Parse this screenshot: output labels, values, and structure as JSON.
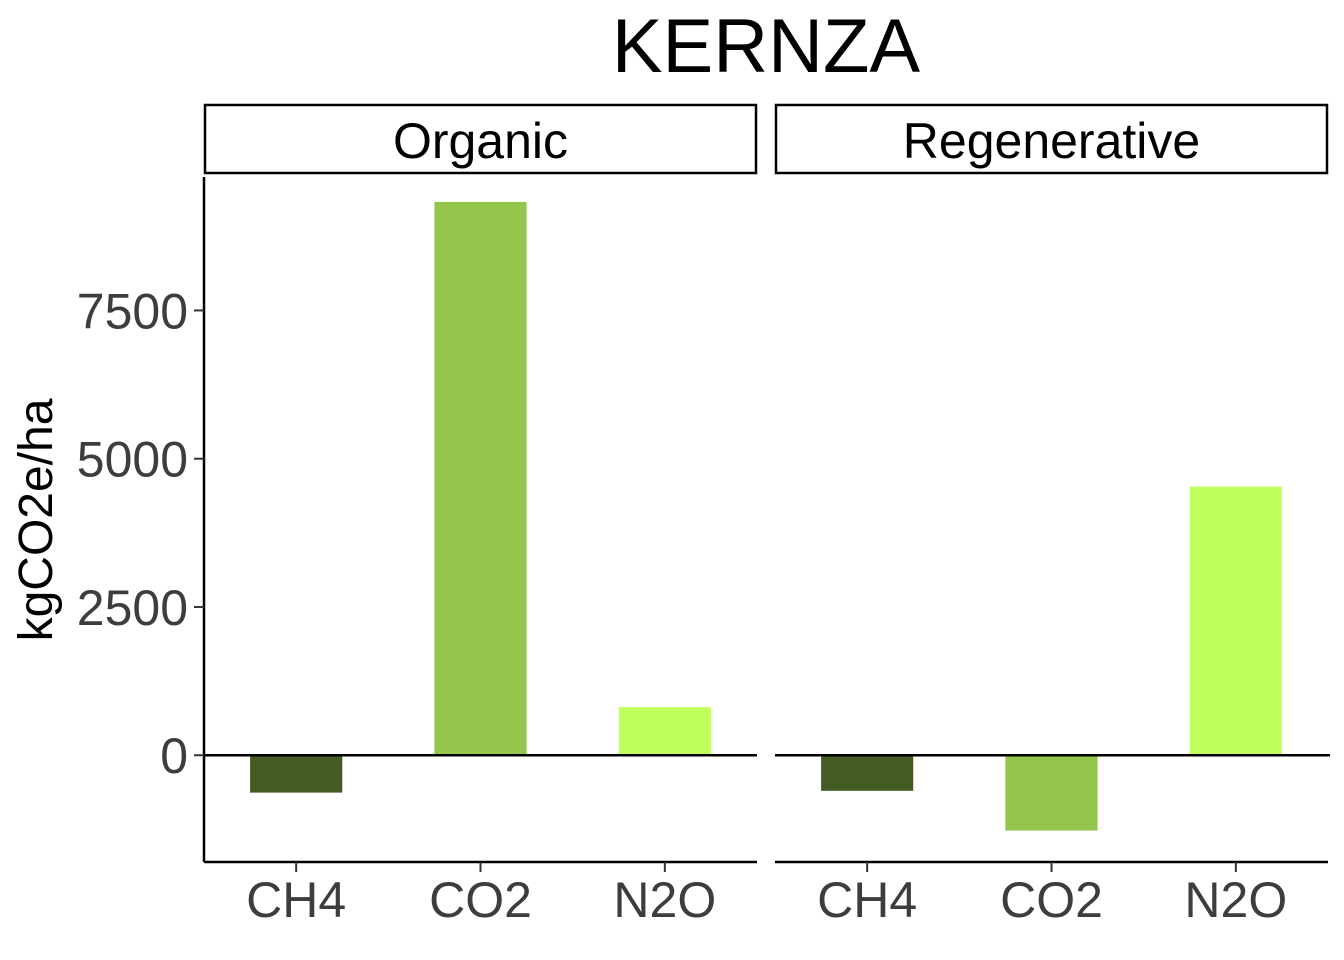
{
  "chart_data": {
    "type": "bar",
    "title": "KERNZA",
    "ylabel": "kgCO2e/ha",
    "xlabel": "",
    "ylim": [
      -1800,
      9750
    ],
    "yticks": [
      0,
      2500,
      5000,
      7500
    ],
    "categories": [
      "CH4",
      "CO2",
      "N2O"
    ],
    "colors": {
      "CH4": "#445c24",
      "CO2": "#93c64b",
      "N2O": "#c0ff5e"
    },
    "legend": "none",
    "grid": false,
    "panels": [
      {
        "name": "Organic",
        "values": [
          -630,
          9330,
          810
        ]
      },
      {
        "name": "Regenerative",
        "values": [
          -600,
          -1270,
          4530
        ]
      }
    ]
  }
}
